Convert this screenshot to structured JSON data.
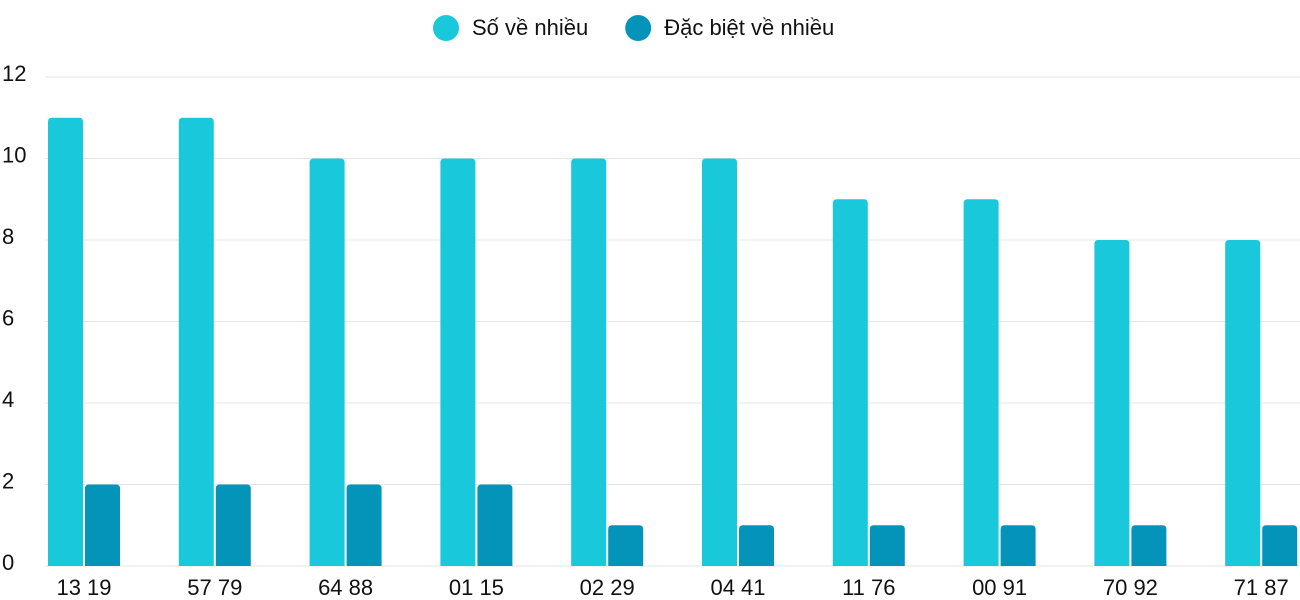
{
  "chart_data": {
    "type": "bar",
    "categories": [
      "13 19",
      "57 79",
      "64 88",
      "01 15",
      "02 29",
      "04 41",
      "11 76",
      "00 91",
      "70 92",
      "71 87"
    ],
    "series": [
      {
        "name": "Số về nhiều",
        "color": "#1ac8db",
        "values": [
          11,
          11,
          10,
          10,
          10,
          10,
          9,
          9,
          8,
          8
        ]
      },
      {
        "name": "Đặc biệt về nhiều",
        "color": "#0494b9",
        "values": [
          2,
          2,
          2,
          2,
          1,
          1,
          1,
          1,
          1,
          1
        ]
      }
    ],
    "ylim": [
      0,
      12
    ],
    "yticks": [
      0,
      2,
      4,
      6,
      8,
      10,
      12
    ],
    "grid": true,
    "legend": "top"
  }
}
